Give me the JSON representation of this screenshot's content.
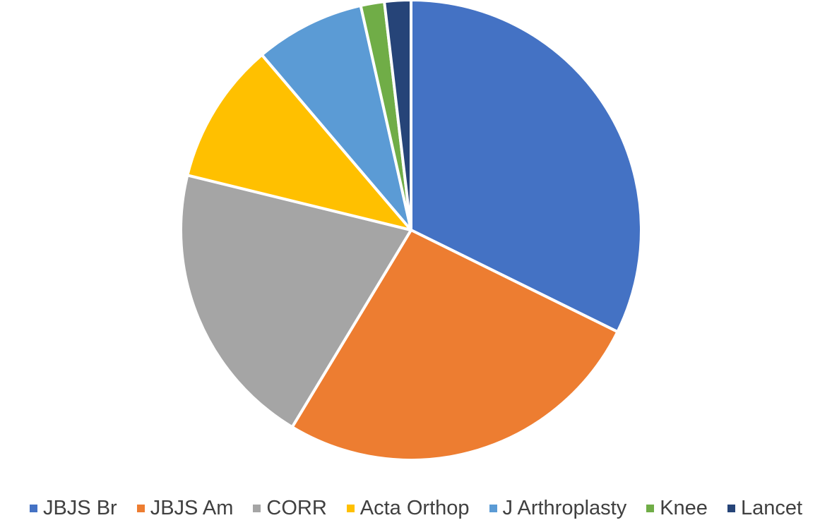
{
  "chart_data": {
    "type": "pie",
    "title": "",
    "legend_position": "bottom",
    "start_angle_deg": 0,
    "direction": "clockwise",
    "slices": [
      {
        "label": "JBJS Br",
        "value": 33.1,
        "color": "#4472C4"
      },
      {
        "label": "JBJS Am",
        "value": 27.0,
        "color": "#ED7D31"
      },
      {
        "label": "CORR",
        "value": 20.7,
        "color": "#A5A5A5"
      },
      {
        "label": "Acta Orthop",
        "value": 10.2,
        "color": "#FFC000"
      },
      {
        "label": "J Arthroplasty",
        "value": 7.9,
        "color": "#5B9BD5"
      },
      {
        "label": "Knee",
        "value": 1.7,
        "color": "#70AD47"
      },
      {
        "label": "Lancet",
        "value": 1.9,
        "color": "#264478"
      }
    ]
  }
}
